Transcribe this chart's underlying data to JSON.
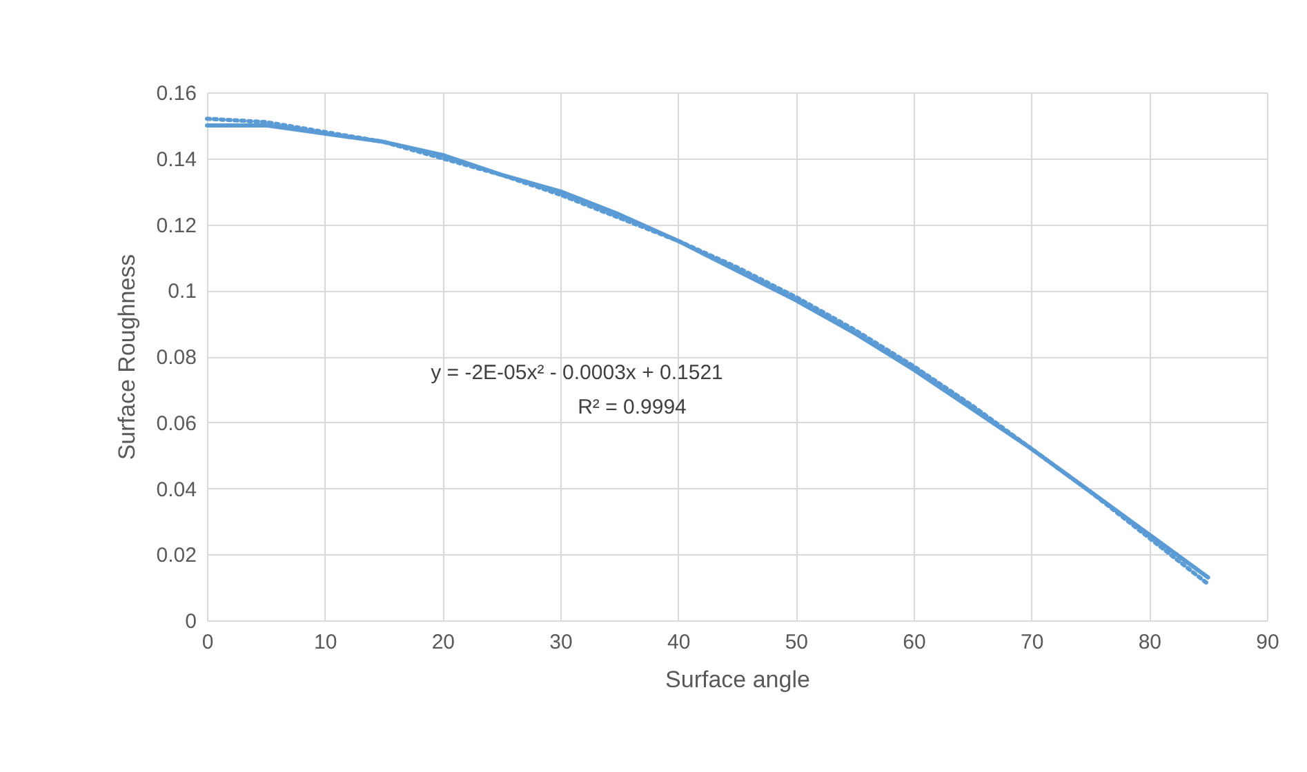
{
  "chart_data": {
    "type": "line",
    "xlabel": "Surface angle",
    "ylabel": "Surface Roughness",
    "x": [
      0,
      5,
      10,
      15,
      20,
      25,
      30,
      35,
      40,
      45,
      50,
      55,
      60,
      65,
      70,
      75,
      80,
      85
    ],
    "series": [
      {
        "color": "#5b9bd5",
        "line_style": "solid",
        "values": [
          0.15,
          0.15,
          0.1475,
          0.145,
          0.141,
          0.135,
          0.13,
          0.123,
          0.115,
          0.106,
          0.097,
          0.087,
          0.076,
          0.064,
          0.052,
          0.039,
          0.026,
          0.013
        ]
      },
      {
        "color": "#5b9bd5",
        "line_style": "dotted",
        "values": [
          0.152,
          0.151,
          0.148,
          0.145,
          0.14,
          0.135,
          0.129,
          0.122,
          0.115,
          0.107,
          0.098,
          0.088,
          0.077,
          0.065,
          0.052,
          0.039,
          0.025,
          0.011
        ]
      }
    ],
    "annotations": [
      "y = -2E-05x² - 0.0003x + 0.1521",
      "R² = 0.9994"
    ],
    "xlim": [
      0,
      90
    ],
    "xticks": [
      0,
      10,
      20,
      30,
      40,
      50,
      60,
      70,
      80,
      90
    ],
    "ylim": [
      0,
      0.16
    ],
    "yticks": [
      0,
      0.02,
      0.04,
      0.06,
      0.08,
      0.1,
      0.12,
      0.14,
      0.16
    ],
    "grid": true,
    "legend": false
  }
}
